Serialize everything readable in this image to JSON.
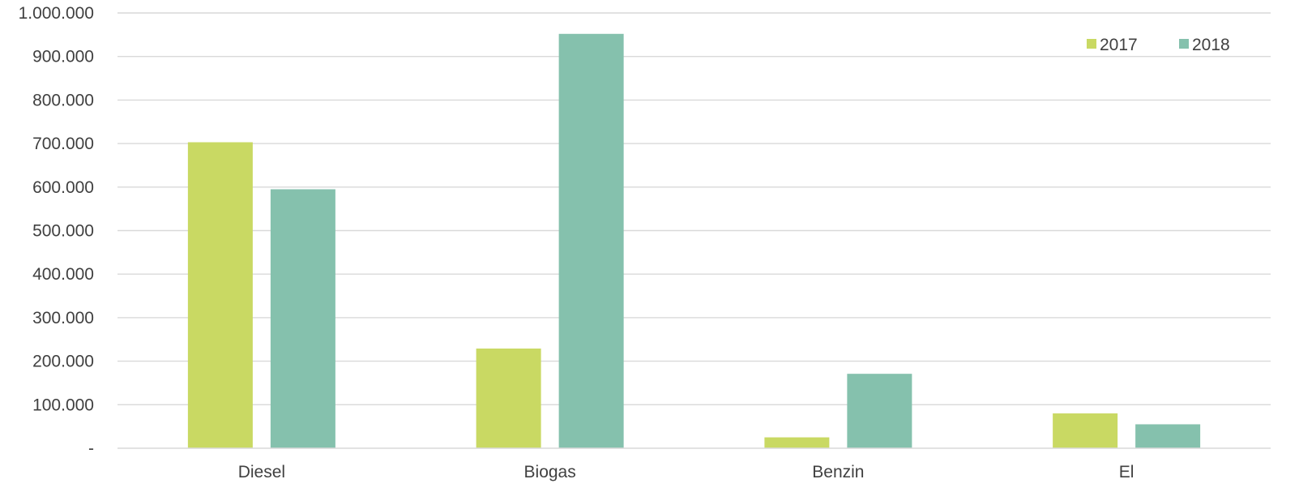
{
  "chart_data": {
    "type": "bar",
    "categories": [
      "Diesel",
      "Biogas",
      "Benzin",
      "El"
    ],
    "series": [
      {
        "name": "2017",
        "color": "#c9d963",
        "values": [
          703000,
          229000,
          25000,
          80000
        ]
      },
      {
        "name": "2018",
        "color": "#85c1ad",
        "values": [
          595000,
          952000,
          171000,
          55000
        ]
      }
    ],
    "ylim": [
      0,
      1000000
    ],
    "y_ticks": [
      0,
      100000,
      200000,
      300000,
      400000,
      500000,
      600000,
      700000,
      800000,
      900000,
      1000000
    ],
    "y_tick_labels": [
      "-",
      "100.000",
      "200.000",
      "300.000",
      "400.000",
      "500.000",
      "600.000",
      "700.000",
      "800.000",
      "900.000",
      "1.000.000"
    ],
    "grid": true,
    "legend_position": "top-right",
    "title": "",
    "xlabel": "",
    "ylabel": ""
  }
}
